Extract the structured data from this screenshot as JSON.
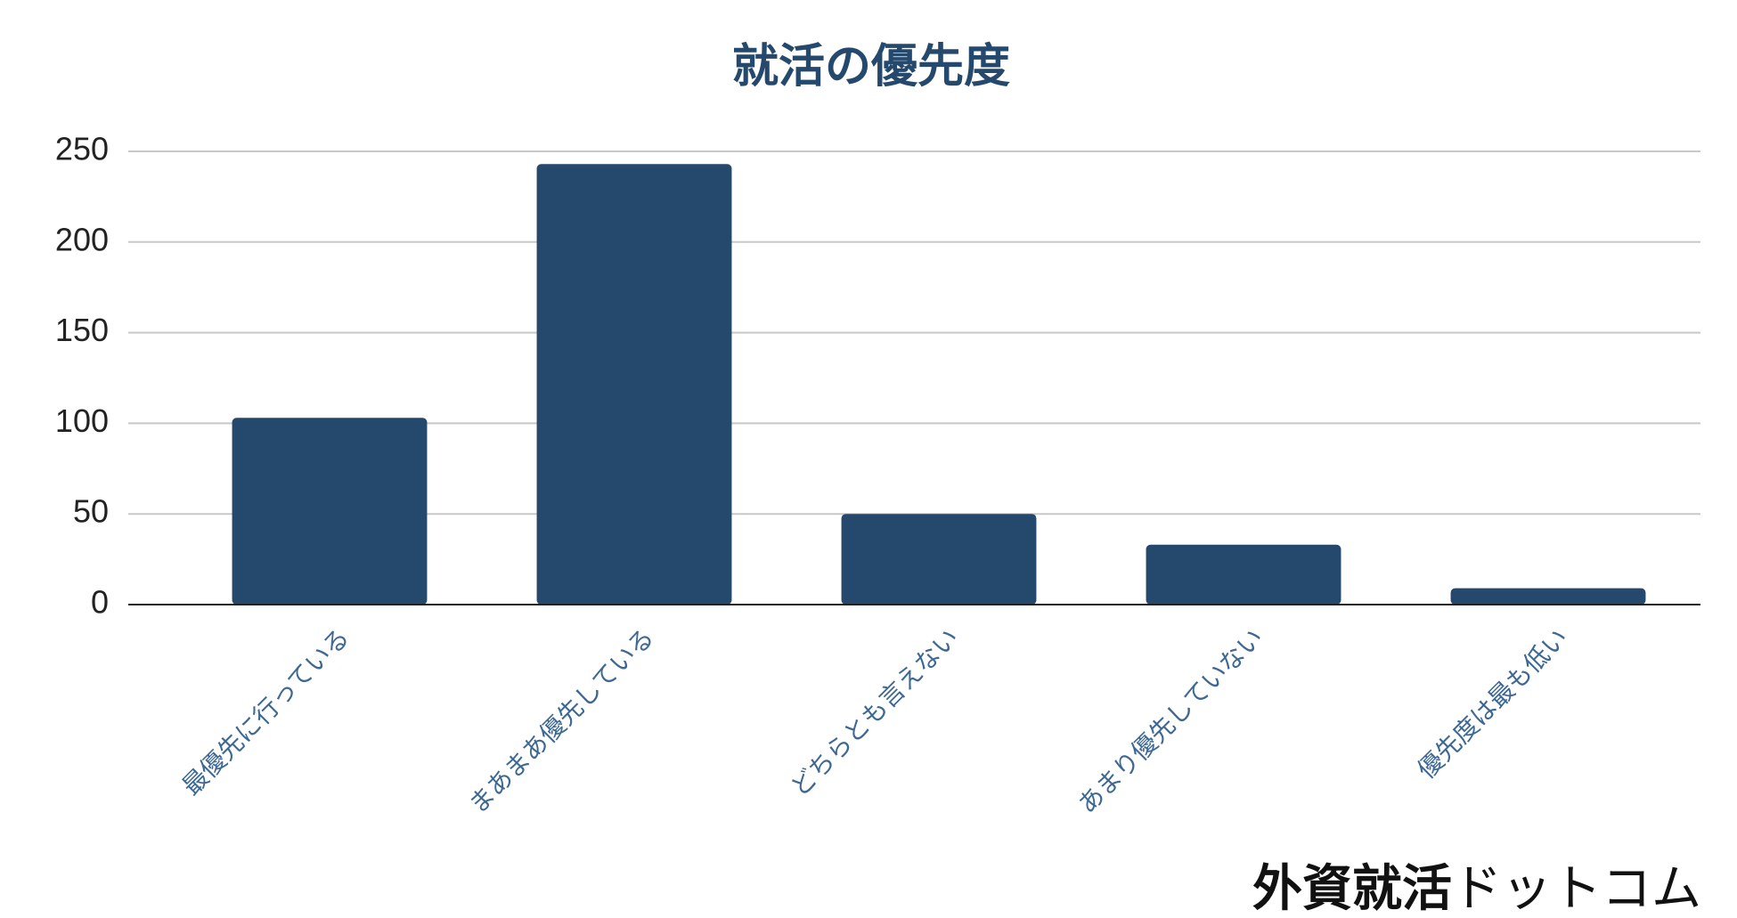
{
  "chart_data": {
    "type": "bar",
    "title": "就活の優先度",
    "categories": [
      "最優先に行っている",
      "まあまあ優先している",
      "どちらとも言えない",
      "あまり優先していない",
      "優先度は最も低い"
    ],
    "values": [
      103,
      243,
      50,
      33,
      9
    ],
    "color": "#25496d",
    "ylim": [
      0,
      250
    ],
    "yticks": [
      0,
      50,
      100,
      150,
      200,
      250
    ],
    "grid": true
  },
  "watermark": {
    "main": "外資就活",
    "sub": "ドットコム"
  }
}
